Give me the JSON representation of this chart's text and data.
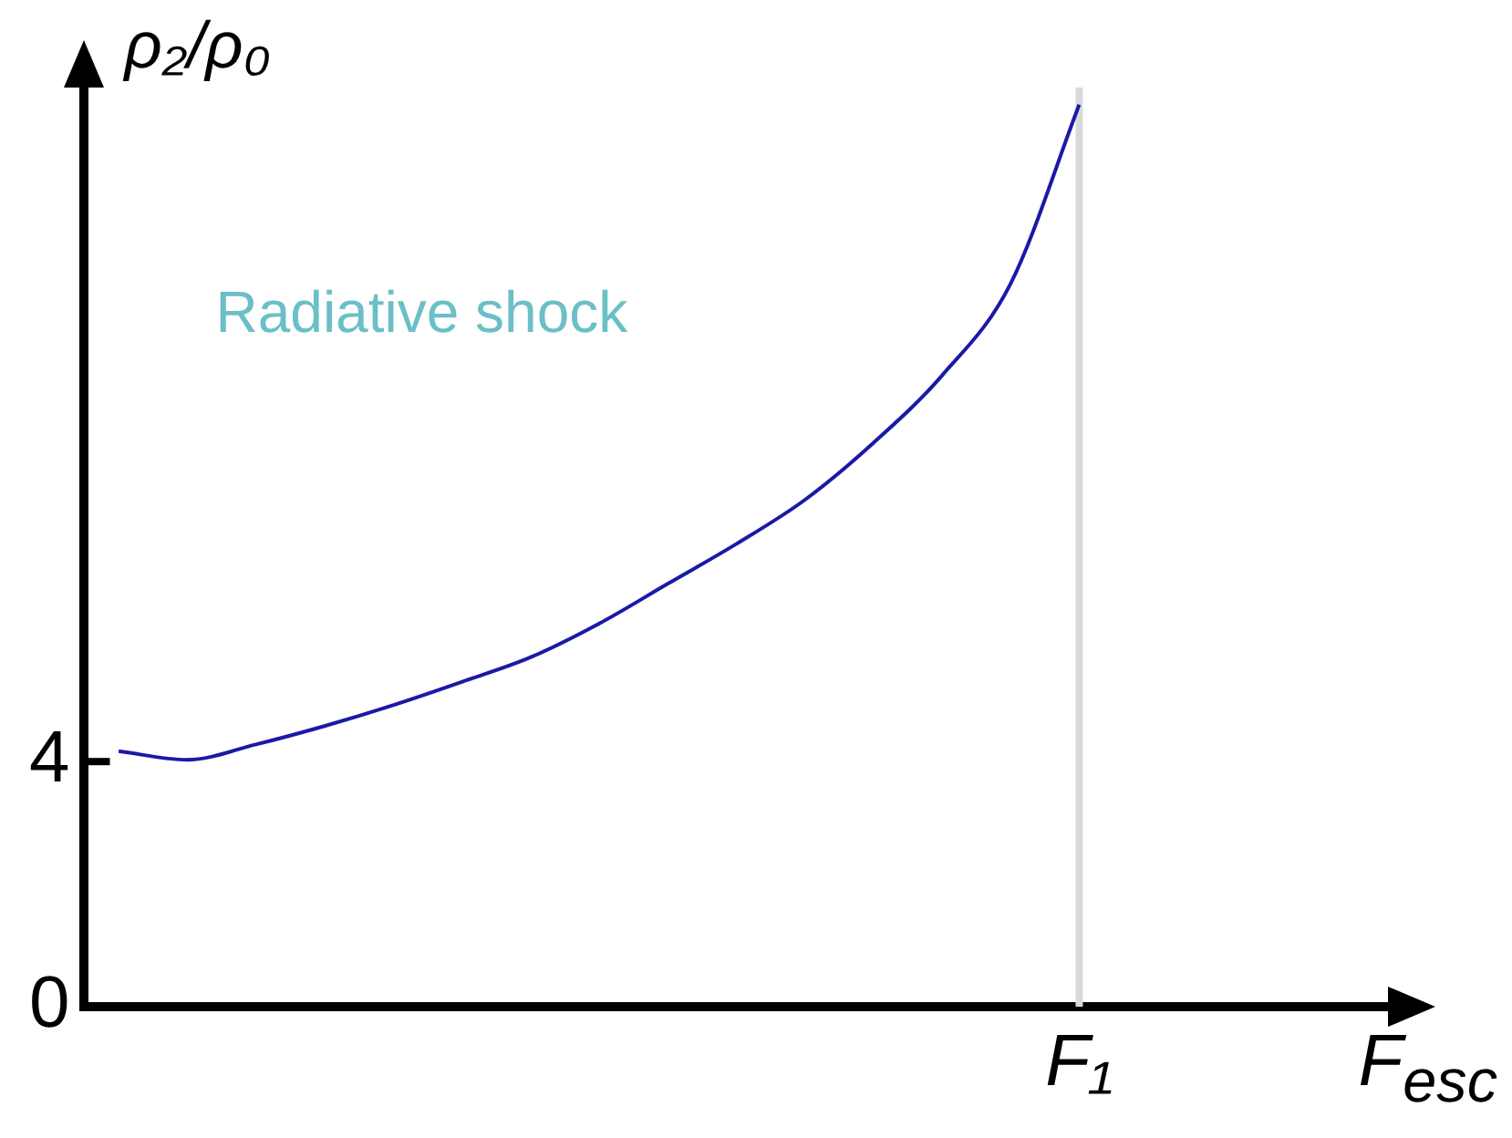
{
  "chart_data": {
    "type": "line",
    "ylabel": "ρ₂/ρ₀",
    "xlabel": "F$_{esc}$",
    "categories": [
      null,
      null,
      null,
      null,
      null,
      null,
      null,
      null,
      null,
      null,
      null,
      null,
      null,
      null,
      "F₁",
      null,
      null,
      null,
      null
    ],
    "series": [
      {
        "color": "#1a1aa6",
        "values": [
          4.17,
          4.03,
          4.28,
          4.58,
          4.92,
          5.3,
          5.7,
          6.25,
          6.9,
          7.55,
          8.27,
          9.2,
          10.3,
          11.8,
          14.72,
          null,
          null,
          null,
          null
        ]
      }
    ],
    "ylim": [
      0,
      15
    ],
    "yticks": [
      0,
      4
    ],
    "ref_lines": [
      {
        "axis": "x",
        "value": "F₁",
        "color": "#d9d9d9"
      }
    ],
    "annotations": [
      "Radiative shock"
    ],
    "grid": false,
    "legend": false,
    "marker": "none",
    "line_style": "solid"
  }
}
